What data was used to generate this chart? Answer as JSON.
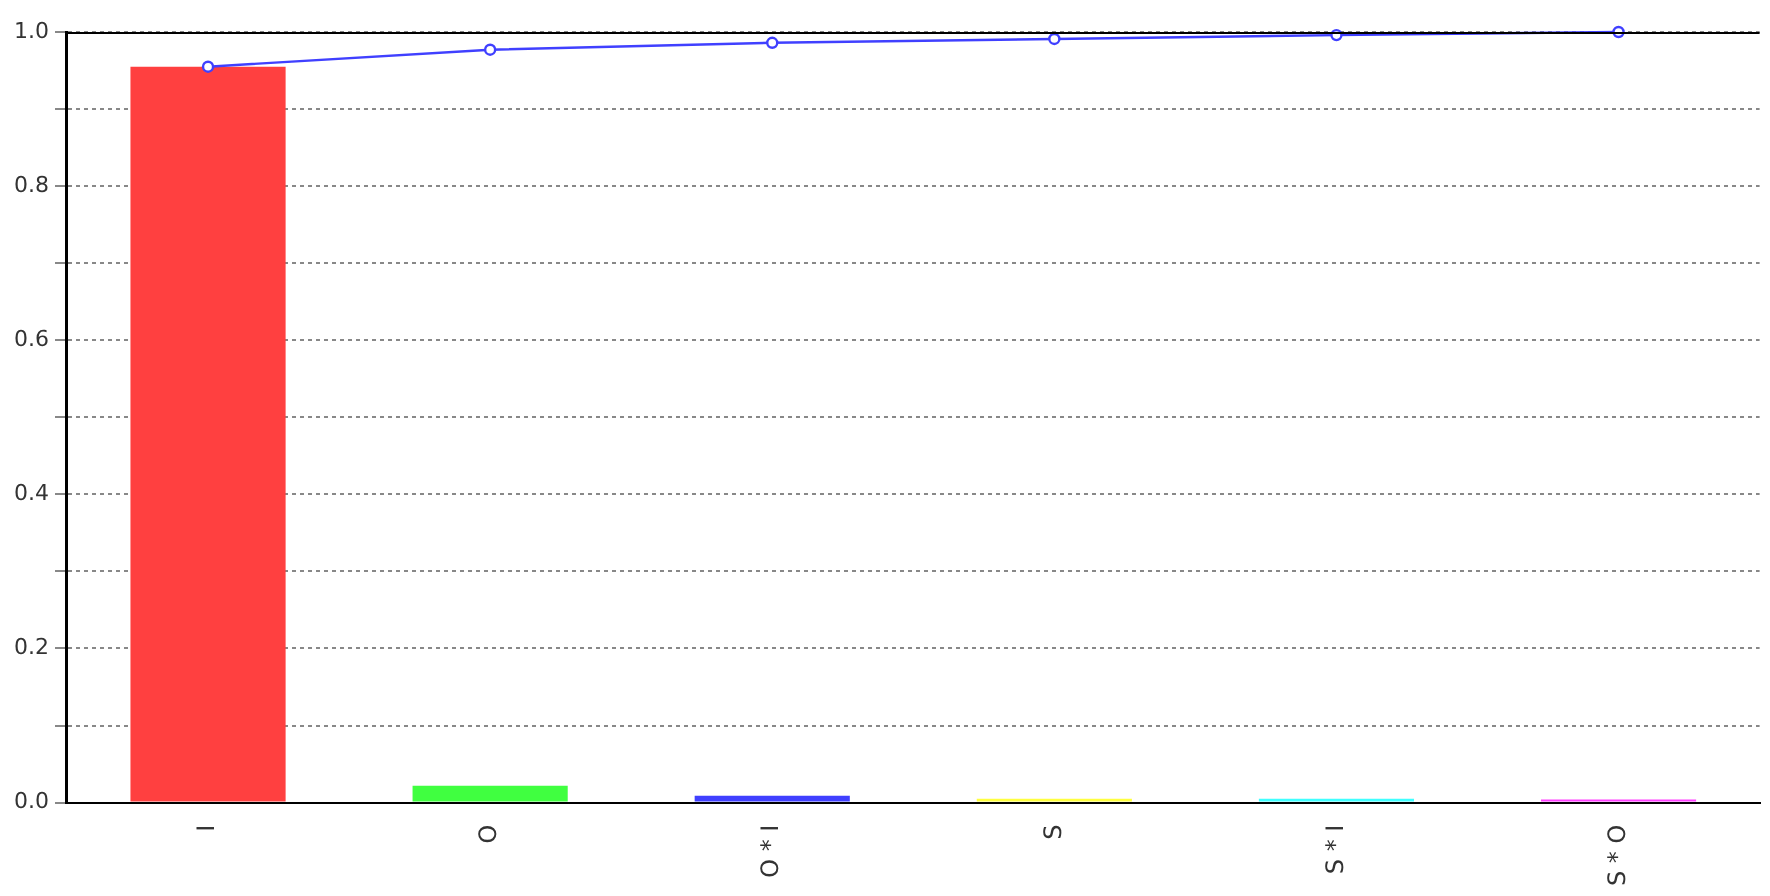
{
  "chart_data": {
    "type": "bar",
    "categories": [
      "I",
      "O",
      "O * I",
      "S",
      "S * I",
      "S * O"
    ],
    "series": [
      {
        "colors": [
          "#ff4040",
          "#40ff40",
          "#4040ff",
          "#ffff40",
          "#40ffff",
          "#ff40ff"
        ],
        "values": [
          0.955,
          0.022,
          0.009,
          0.005,
          0.005,
          0.004
        ]
      },
      {
        "type": "line",
        "color": "#4040ff",
        "marker": "circle",
        "values": [
          0.955,
          0.977,
          0.986,
          0.991,
          0.996,
          1.0
        ]
      }
    ],
    "ylim": [
      0,
      1
    ],
    "yticks": [
      {
        "value": 0,
        "label": "0.0"
      },
      {
        "value": 0.1,
        "label": null
      },
      0.2,
      {
        "value": 0.3,
        "label": null
      },
      0.4,
      {
        "value": 0.5,
        "label": null
      },
      0.6,
      {
        "value": 0.7,
        "label": null
      },
      0.8,
      {
        "value": 0.9,
        "label": null
      },
      {
        "value": 1,
        "label": "1.0"
      }
    ],
    "grid": "y",
    "legend": false
  }
}
